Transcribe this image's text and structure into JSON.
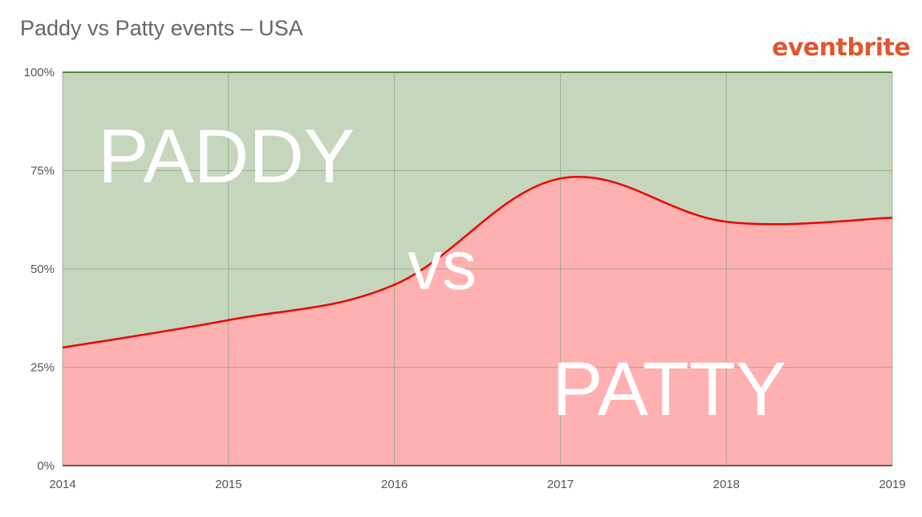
{
  "header": {
    "title": "Paddy vs Patty events – USA",
    "brand": "eventbrite"
  },
  "colors": {
    "paddy_fill": "#c5d6bc",
    "patty_fill": "#ffb0b0",
    "line": "#ee0000",
    "top_border": "#4f8a3a",
    "grid": "#8fa888"
  },
  "overlay_text": {
    "top": "PADDY",
    "middle": "vs",
    "bottom": "PATTY"
  },
  "chart_data": {
    "type": "area",
    "title": "Paddy vs Patty events – USA",
    "xlabel": "",
    "ylabel": "",
    "x_ticks": [
      "2014",
      "2015",
      "2016",
      "2017",
      "2018",
      "2019"
    ],
    "y_ticks": [
      "0%",
      "25%",
      "50%",
      "75%",
      "100%"
    ],
    "ylim": [
      0,
      100
    ],
    "xlim": [
      2014,
      2019
    ],
    "grid": true,
    "stacked_percent": true,
    "series": [
      {
        "name": "PATTY",
        "x": [
          2014,
          2015,
          2016,
          2017,
          2018,
          2019
        ],
        "values": [
          30,
          37,
          46,
          73,
          62,
          63
        ]
      },
      {
        "name": "PADDY",
        "x": [
          2014,
          2015,
          2016,
          2017,
          2018,
          2019
        ],
        "values": [
          70,
          63,
          54,
          27,
          38,
          37
        ]
      }
    ]
  }
}
